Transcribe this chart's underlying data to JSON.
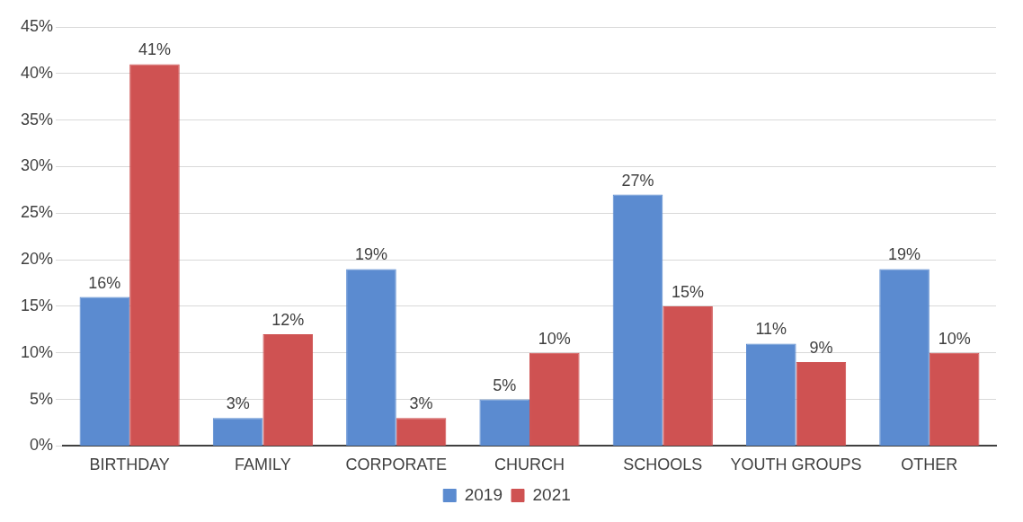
{
  "chart_data": {
    "type": "bar",
    "categories": [
      "BIRTHDAY",
      "FAMILY",
      "CORPORATE",
      "CHURCH",
      "SCHOOLS",
      "YOUTH GROUPS",
      "OTHER"
    ],
    "series": [
      {
        "name": "2019",
        "color": "#5b8bd0",
        "values": [
          16,
          3,
          19,
          5,
          27,
          11,
          19
        ],
        "value_labels": [
          "16%",
          "3%",
          "19%",
          "5%",
          "27%",
          "11%",
          "19%"
        ]
      },
      {
        "name": "2021",
        "color": "#cf5252",
        "values": [
          41,
          12,
          3,
          10,
          15,
          9,
          10
        ],
        "value_labels": [
          "41%",
          "12%",
          "3%",
          "10%",
          "15%",
          "9%",
          "10%"
        ]
      }
    ],
    "ylim": [
      0,
      45
    ],
    "yticks": [
      {
        "value": 0,
        "label": "0%"
      },
      {
        "value": 5,
        "label": "5%"
      },
      {
        "value": 10,
        "label": "10%"
      },
      {
        "value": 15,
        "label": "15%"
      },
      {
        "value": 20,
        "label": "20%"
      },
      {
        "value": 25,
        "label": "25%"
      },
      {
        "value": 30,
        "label": "30%"
      },
      {
        "value": 35,
        "label": "35%"
      },
      {
        "value": 40,
        "label": "40%"
      },
      {
        "value": 45,
        "label": "45%"
      }
    ],
    "grid": "y",
    "legend": "bottom"
  }
}
